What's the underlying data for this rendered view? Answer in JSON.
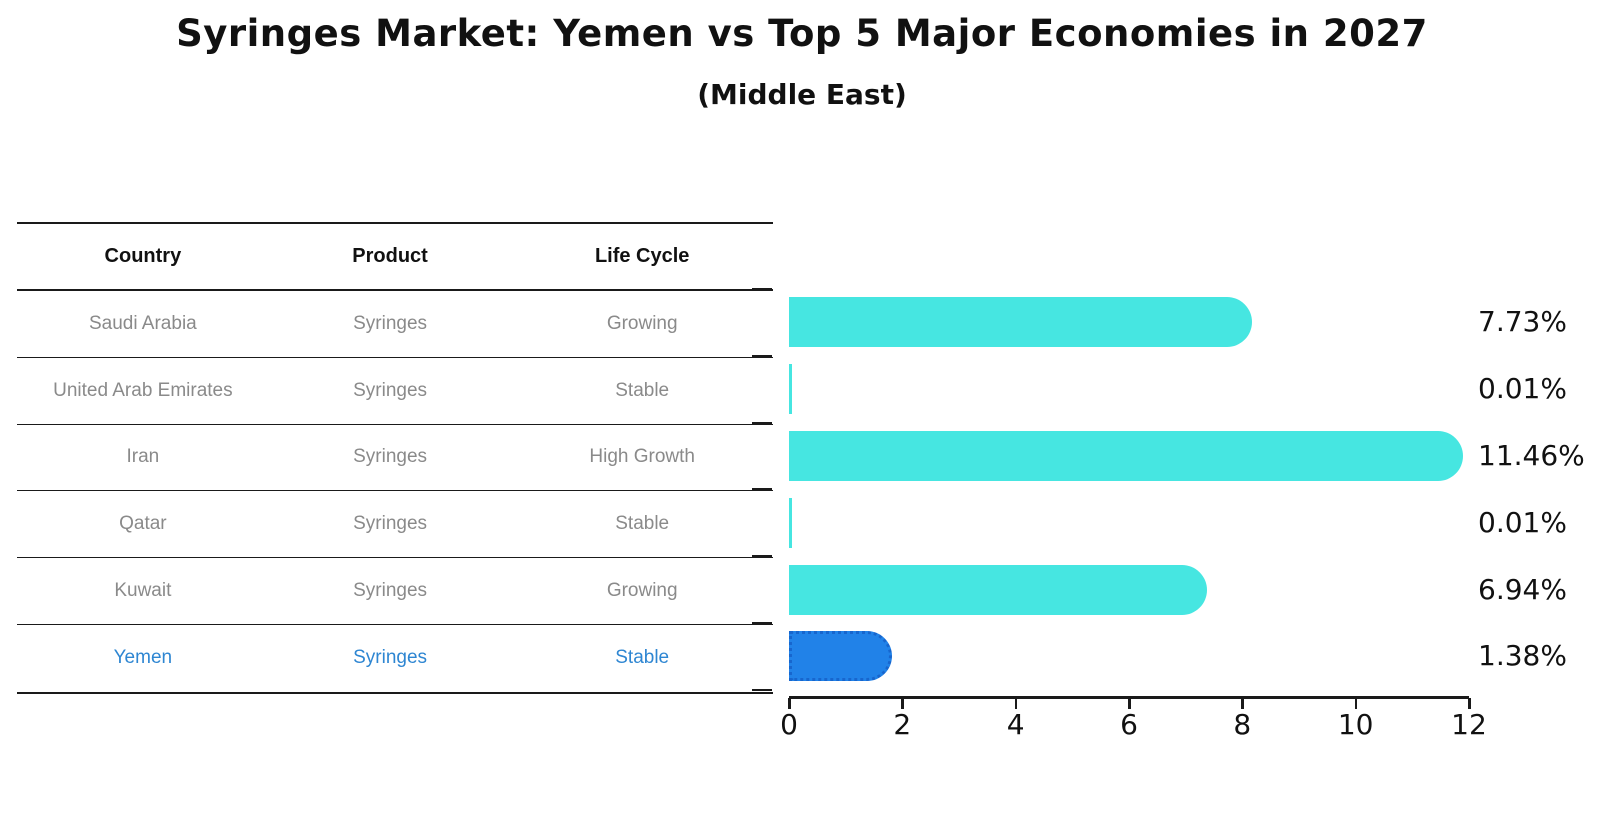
{
  "title": "Syringes Market: Yemen vs Top 5 Major Economies in 2027",
  "subtitle": "(Middle East)",
  "table": {
    "headers": [
      "Country",
      "Product",
      "Life Cycle"
    ],
    "rows": [
      {
        "country": "Saudi Arabia",
        "product": "Syringes",
        "life_cycle": "Growing",
        "highlight": false
      },
      {
        "country": "United Arab Emirates",
        "product": "Syringes",
        "life_cycle": "Stable",
        "highlight": false
      },
      {
        "country": "Iran",
        "product": "Syringes",
        "life_cycle": "High Growth",
        "highlight": false
      },
      {
        "country": "Qatar",
        "product": "Syringes",
        "life_cycle": "Stable",
        "highlight": false
      },
      {
        "country": "Kuwait",
        "product": "Syringes",
        "life_cycle": "Growing",
        "highlight": false
      },
      {
        "country": "Yemen",
        "product": "Syringes",
        "life_cycle": "Stable",
        "highlight": true
      }
    ]
  },
  "chart_data": {
    "type": "bar",
    "orientation": "horizontal",
    "title": "Syringes Market: Yemen vs Top 5 Major Economies in 2027",
    "subtitle": "(Middle East)",
    "categories": [
      "Saudi Arabia",
      "United Arab Emirates",
      "Iran",
      "Qatar",
      "Kuwait",
      "Yemen"
    ],
    "values": [
      7.73,
      0.01,
      11.46,
      0.01,
      6.94,
      1.38
    ],
    "value_labels": [
      "7.73%",
      "0.01%",
      "11.46%",
      "0.01%",
      "6.94%",
      "1.38%"
    ],
    "unit": "%",
    "xlim": [
      0,
      12
    ],
    "x_ticks": [
      0,
      2,
      4,
      6,
      8,
      10,
      12
    ],
    "grid": false,
    "legend": false,
    "bar_color": "#46e6e1",
    "highlight_bar_color": "#2182e8",
    "highlight_index": 5
  },
  "colors": {
    "bar_cyan": "#46e6e1",
    "bar_blue": "#2182e8",
    "bar_blue_border": "#1766ce",
    "table_text_gray": "#8a8a8a",
    "highlight_text_blue": "#2e86d2",
    "line_black": "#1a1a1a"
  }
}
